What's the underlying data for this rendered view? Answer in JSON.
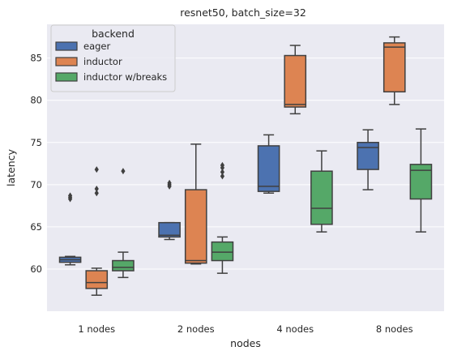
{
  "chart_data": {
    "type": "box",
    "title": "resnet50, batch_size=32",
    "xlabel": "nodes",
    "ylabel": "latency",
    "categories": [
      "1 nodes",
      "2 nodes",
      "4 nodes",
      "8 nodes"
    ],
    "ylim": [
      55,
      89
    ],
    "yticks": [
      60,
      65,
      70,
      75,
      80,
      85
    ],
    "grid": true,
    "legend": {
      "title": "backend",
      "position": "top-left"
    },
    "series": [
      {
        "name": "eager",
        "color": "#4c72b0",
        "boxes": [
          {
            "whislo": 60.5,
            "q1": 60.8,
            "med": 61.1,
            "q3": 61.4,
            "whishi": 61.5,
            "fliers": [
              68.3,
              68.5,
              68.7
            ]
          },
          {
            "whislo": 63.5,
            "q1": 63.8,
            "med": 64.0,
            "q3": 65.5,
            "whishi": 65.5,
            "fliers": [
              69.8,
              70.0,
              70.2
            ]
          },
          {
            "whislo": 69.0,
            "q1": 69.2,
            "med": 69.8,
            "q3": 74.6,
            "whishi": 75.9,
            "fliers": []
          },
          {
            "whislo": 69.4,
            "q1": 71.8,
            "med": 74.4,
            "q3": 75.0,
            "whishi": 76.5,
            "fliers": []
          }
        ]
      },
      {
        "name": "inductor",
        "color": "#dd8452",
        "boxes": [
          {
            "whislo": 56.9,
            "q1": 57.7,
            "med": 58.4,
            "q3": 59.8,
            "whishi": 60.1,
            "fliers": [
              69.0,
              69.5,
              71.8
            ]
          },
          {
            "whislo": 60.6,
            "q1": 60.7,
            "med": 61.0,
            "q3": 69.4,
            "whishi": 74.8,
            "fliers": []
          },
          {
            "whislo": 78.4,
            "q1": 79.2,
            "med": 79.5,
            "q3": 85.3,
            "whishi": 86.5,
            "fliers": []
          },
          {
            "whislo": 79.5,
            "q1": 81.0,
            "med": 86.3,
            "q3": 86.8,
            "whishi": 87.5,
            "fliers": []
          }
        ]
      },
      {
        "name": "inductor w/breaks",
        "color": "#55a868",
        "boxes": [
          {
            "whislo": 59.0,
            "q1": 59.8,
            "med": 60.2,
            "q3": 61.0,
            "whishi": 62.0,
            "fliers": [
              71.6
            ]
          },
          {
            "whislo": 59.5,
            "q1": 61.0,
            "med": 62.0,
            "q3": 63.2,
            "whishi": 63.8,
            "fliers": [
              71.0,
              71.5,
              72.0,
              72.3
            ]
          },
          {
            "whislo": 64.4,
            "q1": 65.3,
            "med": 67.2,
            "q3": 71.6,
            "whishi": 74.0,
            "fliers": []
          },
          {
            "whislo": 64.4,
            "q1": 68.3,
            "med": 71.7,
            "q3": 72.4,
            "whishi": 76.6,
            "fliers": []
          }
        ]
      }
    ]
  }
}
